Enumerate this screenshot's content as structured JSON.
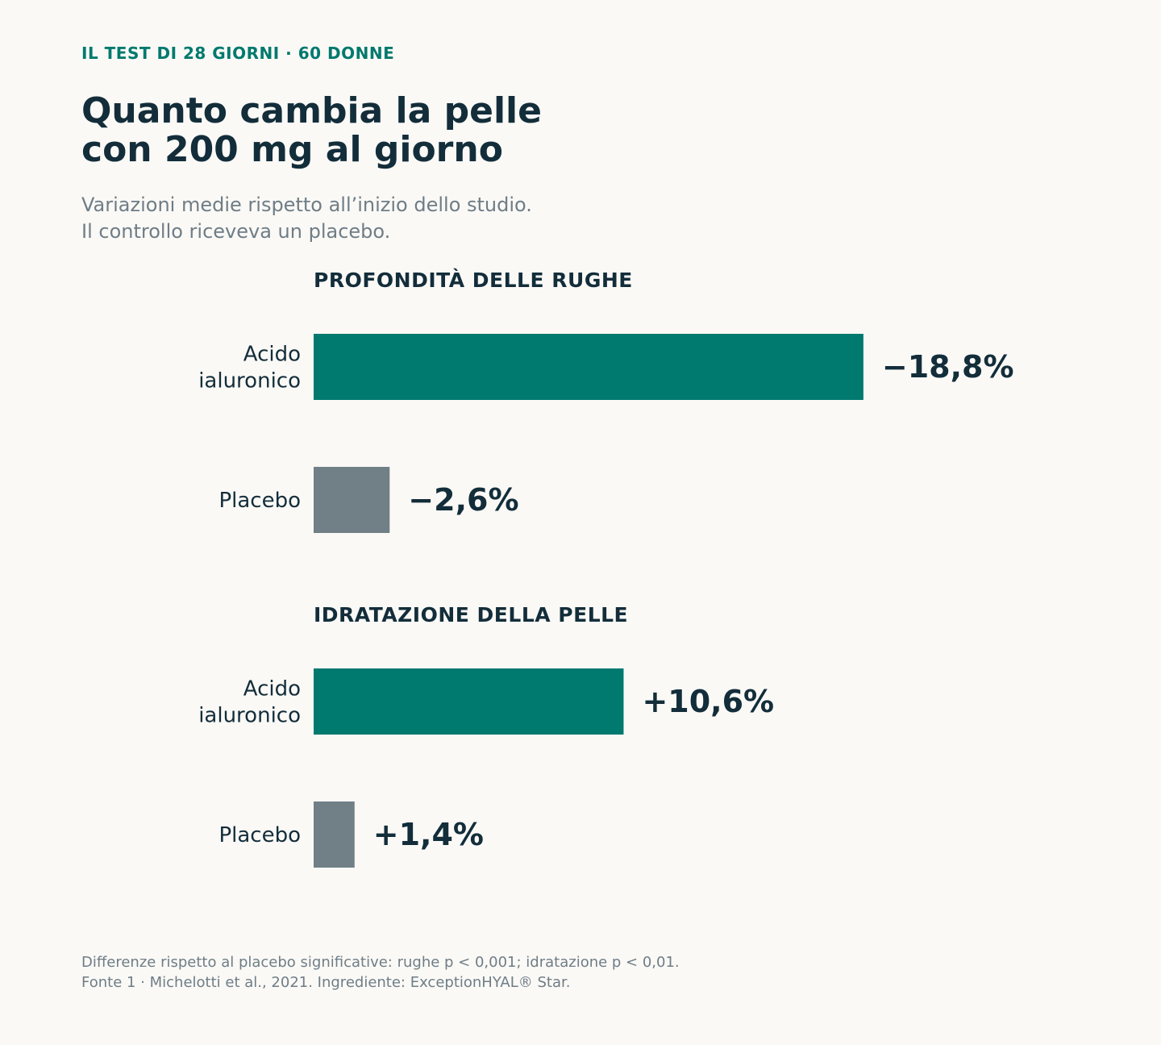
{
  "eyebrow": "IL TEST DI 28 GIORNI · 60 DONNE",
  "title_lines": [
    "Quanto cambia la pelle",
    "con 200 mg al giorno"
  ],
  "subtitle_lines": [
    "Variazioni medie rispetto all’inizio dello studio.",
    "Il controllo riceveva un placebo."
  ],
  "footnote_lines": [
    "Differenze rispetto al placebo significative: rughe p < 0,001; idratazione p < 0,01.",
    "Fonte 1 · Michelotti et al., 2021. Ingrediente: ExceptionHYAL® Star."
  ],
  "colors": {
    "accent": "#00796e",
    "placebo": "#717f86",
    "text": "#132d3a",
    "muted": "#6f7d86",
    "background": "#faf9f6"
  },
  "chart_data": [
    {
      "type": "bar",
      "orientation": "horizontal",
      "title": "PROFONDITÀ DELLE RUGHE",
      "categories": [
        [
          "Acido",
          "ialuronico"
        ],
        [
          "Placebo"
        ]
      ],
      "values": [
        -18.8,
        -2.6
      ],
      "value_labels": [
        "−18,8%",
        "−2,6%"
      ],
      "unit": "%",
      "bar_colors": [
        "#00796e",
        "#717f86"
      ]
    },
    {
      "type": "bar",
      "orientation": "horizontal",
      "title": "IDRATAZIONE DELLA PELLE",
      "categories": [
        [
          "Acido",
          "ialuronico"
        ],
        [
          "Placebo"
        ]
      ],
      "values": [
        10.6,
        1.4
      ],
      "value_labels": [
        "+10,6%",
        "+1,4%"
      ],
      "unit": "%",
      "bar_colors": [
        "#00796e",
        "#717f86"
      ]
    }
  ]
}
